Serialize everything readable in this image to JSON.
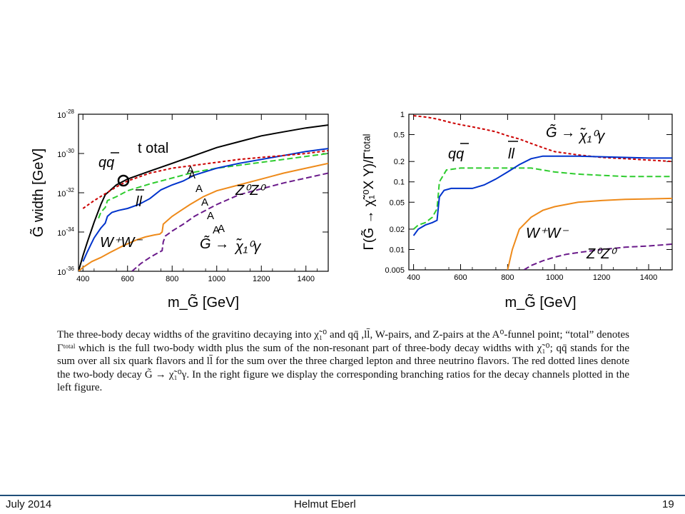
{
  "chart_data": [
    {
      "type": "line",
      "title": "",
      "ylabel": "G̃ width [GeV]",
      "xlabel": "m_G̃ [GeV]",
      "xlim": [
        380,
        1500
      ],
      "ylim_log10": [
        -36,
        -28
      ],
      "log_y": true,
      "x_ticks": [
        "400",
        "600",
        "800",
        "1000",
        "1200",
        "1400"
      ],
      "y_ticks": [
        {
          "base": "10",
          "exp": "-28"
        },
        {
          "base": "10",
          "exp": "-30"
        },
        {
          "base": "10",
          "exp": "-32"
        },
        {
          "base": "10",
          "exp": "-34"
        },
        {
          "base": "10",
          "exp": "-36"
        }
      ],
      "series": [
        {
          "name": "total",
          "color": "#000000",
          "style": "solid",
          "x": [
            380,
            400,
            420,
            450,
            480,
            500,
            550,
            600,
            700,
            800,
            900,
            1000,
            1100,
            1200,
            1300,
            1400,
            1500
          ],
          "y_log10": [
            -36.0,
            -35.2,
            -34.5,
            -33.5,
            -32.6,
            -32.1,
            -31.6,
            -31.3,
            -30.9,
            -30.5,
            -30.1,
            -29.7,
            -29.4,
            -29.1,
            -28.9,
            -28.7,
            -28.55
          ]
        },
        {
          "name": "qq̄",
          "color": "#2ecc2e",
          "style": "dashed",
          "x": [
            470,
            480,
            500,
            510,
            550,
            600,
            700,
            800,
            900,
            1000,
            1100,
            1200,
            1300,
            1400,
            1500
          ],
          "y_log10": [
            -33.3,
            -33.0,
            -32.75,
            -32.4,
            -32.2,
            -31.9,
            -31.55,
            -31.25,
            -30.95,
            -30.75,
            -30.6,
            -30.45,
            -30.3,
            -30.15,
            -30.0
          ]
        },
        {
          "name": "ll̄",
          "color": "#0033cc",
          "style": "solid",
          "x": [
            400,
            420,
            450,
            480,
            500,
            510,
            530,
            560,
            600,
            650,
            700,
            750,
            800,
            850,
            900,
            1000,
            1100,
            1200,
            1300,
            1400,
            1500
          ],
          "y_log10": [
            -35.5,
            -35.0,
            -34.3,
            -33.8,
            -33.55,
            -33.2,
            -33.0,
            -32.9,
            -32.8,
            -32.6,
            -32.3,
            -31.85,
            -31.6,
            -31.4,
            -31.1,
            -30.75,
            -30.5,
            -30.3,
            -30.1,
            -29.9,
            -29.75
          ]
        },
        {
          "name": "G̃ → χ̃₁⁰γ",
          "color": "#cc0000",
          "style": "dotted",
          "x": [
            400,
            450,
            500,
            550,
            600,
            700,
            800,
            900,
            1000,
            1100,
            1200,
            1300,
            1400,
            1500
          ],
          "y_log10": [
            -32.8,
            -32.4,
            -32.05,
            -31.7,
            -31.4,
            -31.0,
            -30.75,
            -30.6,
            -30.45,
            -30.3,
            -30.2,
            -30.1,
            -30.0,
            -29.85
          ]
        },
        {
          "name": "W⁺W⁻",
          "color": "#ee8a1a",
          "style": "solid",
          "x": [
            380,
            400,
            440,
            480,
            520,
            580,
            640,
            680,
            720,
            745,
            755,
            760,
            780,
            800,
            840,
            880,
            940,
            1000,
            1100,
            1200,
            1300,
            1400,
            1500
          ],
          "y_log10": [
            -36.0,
            -35.8,
            -35.5,
            -35.3,
            -35.05,
            -34.7,
            -34.4,
            -34.25,
            -34.15,
            -34.1,
            -34.0,
            -33.6,
            -33.4,
            -33.2,
            -32.9,
            -32.6,
            -32.2,
            -31.9,
            -31.6,
            -31.3,
            -31.0,
            -30.75,
            -30.5
          ]
        },
        {
          "name": "Z⁰Z⁰",
          "color": "#6a1a8a",
          "style": "dashed",
          "x": [
            620,
            660,
            700,
            730,
            755,
            760,
            770,
            800,
            850,
            900,
            950,
            1000,
            1100,
            1200,
            1300,
            1400,
            1500
          ],
          "y_log10": [
            -36.0,
            -35.6,
            -35.3,
            -35.1,
            -34.95,
            -34.5,
            -34.2,
            -33.95,
            -33.6,
            -33.2,
            -32.9,
            -32.6,
            -32.1,
            -31.8,
            -31.5,
            -31.25,
            -31.0
          ]
        }
      ],
      "annotations": [
        "t otal",
        "qq",
        "ll",
        "Z⁰Z⁰",
        "W⁺W⁻",
        "G̃ →",
        "χ̃₁⁰γ",
        "A",
        "A",
        "A",
        "A",
        "A",
        "A",
        "A"
      ]
    },
    {
      "type": "line",
      "title": "",
      "ylabel": "Γ(G̃ → χ̃₁⁰X Y)/Γᵗᵒᵗᵃˡ",
      "xlabel": "m_G̃ [GeV]",
      "xlim": [
        380,
        1500
      ],
      "ylim": [
        0.005,
        1
      ],
      "log_y": true,
      "x_ticks": [
        "400",
        "600",
        "800",
        "1000",
        "1200",
        "1400"
      ],
      "y_ticks": [
        "1",
        "0.5",
        "0.2",
        "0.1",
        "0.05",
        "0.02",
        "0.01",
        "0.005"
      ],
      "series": [
        {
          "name": "G̃ → χ̃₁⁰γ",
          "color": "#cc0000",
          "style": "dotted",
          "x": [
            400,
            460,
            500,
            560,
            600,
            650,
            700,
            750,
            800,
            850,
            900,
            950,
            1000,
            1100,
            1200,
            1300,
            1400,
            1500
          ],
          "y": [
            0.95,
            0.9,
            0.85,
            0.75,
            0.7,
            0.65,
            0.6,
            0.55,
            0.48,
            0.43,
            0.37,
            0.32,
            0.28,
            0.25,
            0.23,
            0.22,
            0.21,
            0.2
          ]
        },
        {
          "name": "qq̄",
          "color": "#2ecc2e",
          "style": "dashed",
          "x": [
            400,
            420,
            450,
            480,
            500,
            510,
            540,
            600,
            700,
            800,
            900,
            1000,
            1100,
            1200,
            1300,
            1400,
            1500
          ],
          "y": [
            0.02,
            0.023,
            0.025,
            0.03,
            0.04,
            0.1,
            0.15,
            0.16,
            0.16,
            0.16,
            0.16,
            0.14,
            0.13,
            0.125,
            0.12,
            0.12,
            0.12
          ]
        },
        {
          "name": "ll̄",
          "color": "#0033cc",
          "style": "solid",
          "x": [
            400,
            420,
            450,
            480,
            500,
            510,
            530,
            560,
            600,
            650,
            700,
            750,
            800,
            850,
            900,
            950,
            1000,
            1100,
            1200,
            1300,
            1400,
            1500
          ],
          "y": [
            0.016,
            0.02,
            0.023,
            0.025,
            0.027,
            0.06,
            0.075,
            0.08,
            0.08,
            0.08,
            0.09,
            0.11,
            0.14,
            0.18,
            0.22,
            0.24,
            0.24,
            0.24,
            0.235,
            0.23,
            0.225,
            0.225
          ]
        },
        {
          "name": "W⁺W⁻",
          "color": "#ee8a1a",
          "style": "solid",
          "x": [
            800,
            820,
            850,
            900,
            950,
            1000,
            1100,
            1200,
            1300,
            1400,
            1500
          ],
          "y": [
            0.005,
            0.01,
            0.02,
            0.03,
            0.038,
            0.043,
            0.05,
            0.053,
            0.055,
            0.056,
            0.057
          ]
        },
        {
          "name": "Z⁰Z⁰",
          "color": "#6a1a8a",
          "style": "dashed",
          "x": [
            870,
            900,
            950,
            1000,
            1050,
            1100,
            1200,
            1300,
            1400,
            1500
          ],
          "y": [
            0.005,
            0.0058,
            0.0068,
            0.0077,
            0.0085,
            0.009,
            0.01,
            0.0108,
            0.0113,
            0.012
          ]
        }
      ],
      "annotations": [
        "qq",
        "ll",
        "G̃ →",
        "χ̃₁⁰γ",
        "W⁺W⁻",
        "Z⁰Z⁰"
      ]
    }
  ],
  "caption": "The three-body decay widths of the gravitino decaying into χ̃₁⁰ and qq̄ ,ll̄, W-pairs, and Z-pairs at the A⁰-funnel point; “total” denotes Γᵗᵒᵗᵃˡ which is the full two-body width plus the sum of the non-resonant part of three-body decay widths with χ̃₁⁰; qq̄ stands for the sum over all six quark flavors and ll̄ for the sum over the three charged lepton and three neutrino flavors. The red dotted lines denote the two-body decay G̃ → χ̃₁⁰γ. In the right figure we display the corresponding branching ratios for the decay channels plotted in the left figure.",
  "footer": {
    "date": "July 2014",
    "author": "Helmut Eberl",
    "page": "19"
  }
}
